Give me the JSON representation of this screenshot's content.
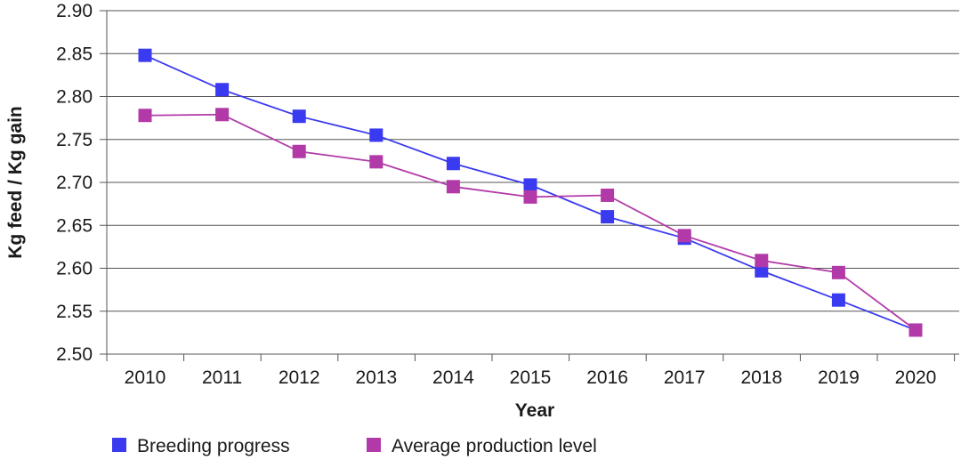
{
  "chart_data": {
    "type": "line",
    "title": "",
    "xlabel": "Year",
    "ylabel": "Kg feed / Kg gain",
    "categories": [
      "2010",
      "2011",
      "2012",
      "2013",
      "2014",
      "2015",
      "2016",
      "2017",
      "2018",
      "2019",
      "2020"
    ],
    "ylim": [
      2.5,
      2.9
    ],
    "yticks": [
      "2.50",
      "2.55",
      "2.60",
      "2.65",
      "2.70",
      "2.75",
      "2.80",
      "2.85",
      "2.90"
    ],
    "grid": "horizontal",
    "legend_position": "bottom",
    "series": [
      {
        "name": "Breeding progress",
        "color": "#3a3af0",
        "marker": "square",
        "values": [
          2.848,
          2.808,
          2.777,
          2.755,
          2.722,
          2.697,
          2.66,
          2.635,
          2.597,
          2.563,
          2.528
        ]
      },
      {
        "name": "Average production level",
        "color": "#b23aa8",
        "marker": "square",
        "values": [
          2.778,
          2.779,
          2.736,
          2.724,
          2.695,
          2.683,
          2.685,
          2.638,
          2.609,
          2.595,
          2.528
        ]
      }
    ]
  }
}
